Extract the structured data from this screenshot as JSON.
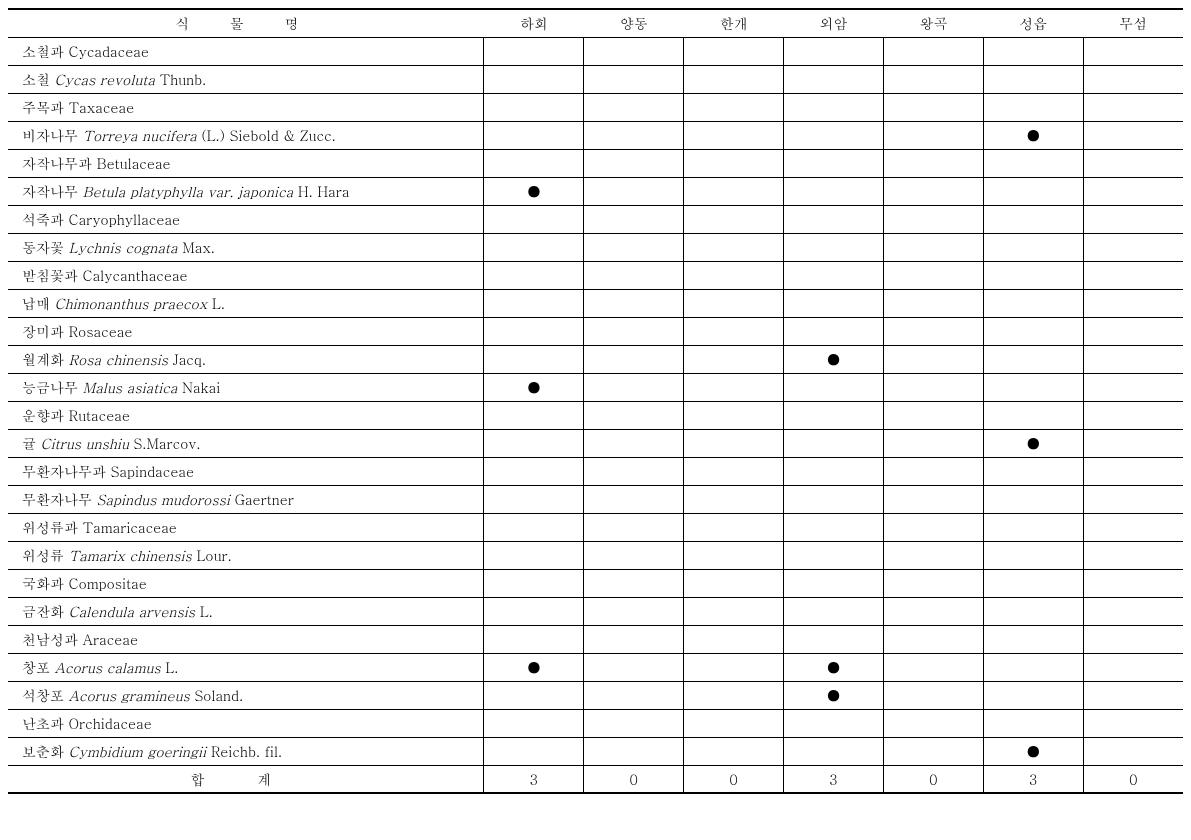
{
  "header": {
    "name_label": "식 물 명",
    "locations": [
      "하회",
      "양동",
      "한개",
      "외암",
      "왕곡",
      "성읍",
      "무섬"
    ]
  },
  "rows": [
    {
      "type": "family",
      "name_kr": "소철과",
      "name_sci": "Cycadaceae",
      "marks": [
        "",
        "",
        "",
        "",
        "",
        "",
        ""
      ]
    },
    {
      "type": "species",
      "name_kr": "소철",
      "name_sci": "Cycas revoluta",
      "auth": " Thunb.",
      "marks": [
        "",
        "",
        "",
        "",
        "",
        "",
        ""
      ]
    },
    {
      "type": "family",
      "name_kr": "주목과",
      "name_sci": "Taxaceae",
      "marks": [
        "",
        "",
        "",
        "",
        "",
        "",
        ""
      ]
    },
    {
      "type": "species",
      "name_kr": "비자나무",
      "name_sci": "Torreya nucifera",
      "auth": " (L.) Siebold & Zucc.",
      "marks": [
        "",
        "",
        "",
        "",
        "",
        "●",
        ""
      ]
    },
    {
      "type": "family",
      "name_kr": "자작나무과",
      "name_sci": "Betulaceae",
      "marks": [
        "",
        "",
        "",
        "",
        "",
        "",
        ""
      ]
    },
    {
      "type": "species",
      "name_kr": "자작나무",
      "name_sci": "Betula platyphylla var. japonica",
      "auth": " H. Hara",
      "marks": [
        "●",
        "",
        "",
        "",
        "",
        "",
        ""
      ]
    },
    {
      "type": "family",
      "name_kr": "석죽과",
      "name_sci": "Caryophyllaceae",
      "marks": [
        "",
        "",
        "",
        "",
        "",
        "",
        ""
      ]
    },
    {
      "type": "species",
      "name_kr": "동자꽃",
      "name_sci": "Lychnis cognata",
      "auth": " Max.",
      "marks": [
        "",
        "",
        "",
        "",
        "",
        "",
        ""
      ]
    },
    {
      "type": "family",
      "name_kr": "받침꽃과",
      "name_sci": "Calycanthaceae",
      "marks": [
        "",
        "",
        "",
        "",
        "",
        "",
        ""
      ]
    },
    {
      "type": "species",
      "name_kr": "납매",
      "name_sci": "Chimonanthus praecox",
      "auth": " L.",
      "marks": [
        "",
        "",
        "",
        "",
        "",
        "",
        ""
      ]
    },
    {
      "type": "family",
      "name_kr": "장미과",
      "name_sci": "Rosaceae",
      "marks": [
        "",
        "",
        "",
        "",
        "",
        "",
        ""
      ]
    },
    {
      "type": "species",
      "name_kr": "월계화",
      "name_sci": "Rosa chinensis",
      "auth": " Jacq.",
      "marks": [
        "",
        "",
        "",
        "●",
        "",
        "",
        ""
      ]
    },
    {
      "type": "species",
      "name_kr": "능금나무",
      "name_sci": "Malus asiatica",
      "auth": " Nakai",
      "marks": [
        "●",
        "",
        "",
        "",
        "",
        "",
        ""
      ]
    },
    {
      "type": "family",
      "name_kr": "운향과",
      "name_sci": "Rutaceae",
      "marks": [
        "",
        "",
        "",
        "",
        "",
        "",
        ""
      ]
    },
    {
      "type": "species",
      "name_kr": "귤",
      "name_sci": "Citrus unshiu",
      "auth": " S.Marcov.",
      "marks": [
        "",
        "",
        "",
        "",
        "",
        "●",
        ""
      ]
    },
    {
      "type": "family",
      "name_kr": "무환자나무과",
      "name_sci": "Sapindaceae",
      "marks": [
        "",
        "",
        "",
        "",
        "",
        "",
        ""
      ]
    },
    {
      "type": "species",
      "name_kr": "무환자나무",
      "name_sci": "Sapindus mudorossi",
      "auth": " Gaertner",
      "marks": [
        "",
        "",
        "",
        "",
        "",
        "",
        ""
      ]
    },
    {
      "type": "family",
      "name_kr": "위성류과",
      "name_sci": "Tamaricaceae",
      "marks": [
        "",
        "",
        "",
        "",
        "",
        "",
        ""
      ]
    },
    {
      "type": "species",
      "name_kr": "위성류",
      "name_sci": "Tamarix chinensis",
      "auth": " Lour.",
      "marks": [
        "",
        "",
        "",
        "",
        "",
        "",
        ""
      ]
    },
    {
      "type": "family",
      "name_kr": "국화과",
      "name_sci": "Compositae",
      "marks": [
        "",
        "",
        "",
        "",
        "",
        "",
        ""
      ]
    },
    {
      "type": "species",
      "name_kr": "금잔화",
      "name_sci": "Calendula arvensis",
      "auth": " L.",
      "marks": [
        "",
        "",
        "",
        "",
        "",
        "",
        ""
      ]
    },
    {
      "type": "family",
      "name_kr": "천남성과",
      "name_sci": "Araceae",
      "marks": [
        "",
        "",
        "",
        "",
        "",
        "",
        ""
      ]
    },
    {
      "type": "species",
      "name_kr": "창포",
      "name_sci": "Acorus calamus",
      "auth": " L.",
      "marks": [
        "●",
        "",
        "",
        "●",
        "",
        "",
        ""
      ]
    },
    {
      "type": "species",
      "name_kr": "석창포",
      "name_sci": "Acorus gramineus",
      "auth": " Soland.",
      "marks": [
        "",
        "",
        "",
        "●",
        "",
        "",
        ""
      ]
    },
    {
      "type": "family",
      "name_kr": "난초과",
      "name_sci": "Orchidaceae",
      "marks": [
        "",
        "",
        "",
        "",
        "",
        "",
        ""
      ]
    },
    {
      "type": "species",
      "name_kr": "보춘화",
      "name_sci": "Cymbidium goeringii",
      "auth": " Reichb. fil.",
      "marks": [
        "",
        "",
        "",
        "",
        "",
        "●",
        ""
      ]
    }
  ],
  "totals": {
    "label": "합 계",
    "values": [
      "3",
      "0",
      "0",
      "3",
      "0",
      "3",
      "0"
    ]
  },
  "style": {
    "dot": "●",
    "text_color": "#000000",
    "bg_color": "#ffffff"
  }
}
